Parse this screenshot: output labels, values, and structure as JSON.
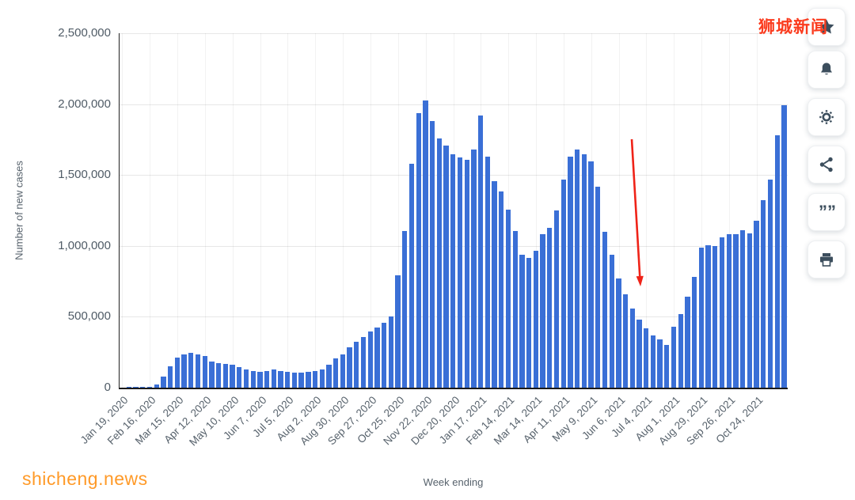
{
  "watermarks": {
    "top_right": "狮城新闻",
    "bottom_left": "shicheng.news"
  },
  "toolbar": {
    "buttons": [
      "favorite",
      "notifications",
      "settings",
      "share",
      "cite",
      "print"
    ],
    "quote_glyph": "””"
  },
  "chart_data": {
    "type": "bar",
    "title": "",
    "xlabel": "Week ending",
    "ylabel": "Number of new cases",
    "ylim": [
      0,
      2500000
    ],
    "ytick_interval": 500000,
    "yticks": [
      "0",
      "500,000",
      "1,000,000",
      "1,500,000",
      "2,000,000",
      "2,500,000"
    ],
    "grid": true,
    "bar_color": "#3a6fd6",
    "label_every": 4,
    "x_tick_labels": [
      "Jan 19, 2020",
      "Feb 16, 2020",
      "Mar 15, 2020",
      "Apr 12, 2020",
      "May 10, 2020",
      "Jun 7, 2020",
      "Jul 5, 2020",
      "Aug 2, 2020",
      "Aug 30, 2020",
      "Sep 27, 2020",
      "Oct 25, 2020",
      "Nov 22, 2020",
      "Dec 20, 2020",
      "Jan 17, 2021",
      "Feb 14, 2021",
      "Mar 14, 2021",
      "Apr 11, 2021",
      "May 9, 2021",
      "Jun 6, 2021",
      "Jul 4, 2021",
      "Aug 1, 2021",
      "Aug 29, 2021",
      "Sep 26, 2021",
      "Oct 24, 2021"
    ],
    "values": [
      2000,
      3000,
      3000,
      4000,
      8000,
      20000,
      78000,
      152000,
      210000,
      233000,
      243000,
      237000,
      222000,
      186000,
      173000,
      167000,
      160000,
      147000,
      128000,
      118000,
      112000,
      120000,
      126000,
      120000,
      113000,
      108000,
      104000,
      110000,
      117000,
      126000,
      162000,
      205000,
      236000,
      285000,
      325000,
      355000,
      394000,
      424000,
      455000,
      505000,
      790000,
      1105000,
      1580000,
      1935000,
      2027000,
      1880000,
      1760000,
      1705000,
      1645000,
      1625000,
      1605000,
      1680000,
      1920000,
      1630000,
      1455000,
      1385000,
      1255000,
      1105000,
      935000,
      915000,
      965000,
      1080000,
      1130000,
      1250000,
      1470000,
      1630000,
      1680000,
      1645000,
      1595000,
      1420000,
      1100000,
      940000,
      770000,
      660000,
      560000,
      480000,
      420000,
      370000,
      340000,
      300000,
      430000,
      520000,
      640000,
      780000,
      990000,
      1005000,
      1000000,
      1060000,
      1080000,
      1080000,
      1110000,
      1090000,
      1180000,
      1320000,
      1470000,
      1780000,
      1990000
    ],
    "annotation": {
      "shape": "down-arrow",
      "color": "#ef2318",
      "from": [
        798,
        176
      ],
      "to": [
        809,
        362
      ],
      "points_to": "Jul 4, 2021 trough"
    }
  }
}
